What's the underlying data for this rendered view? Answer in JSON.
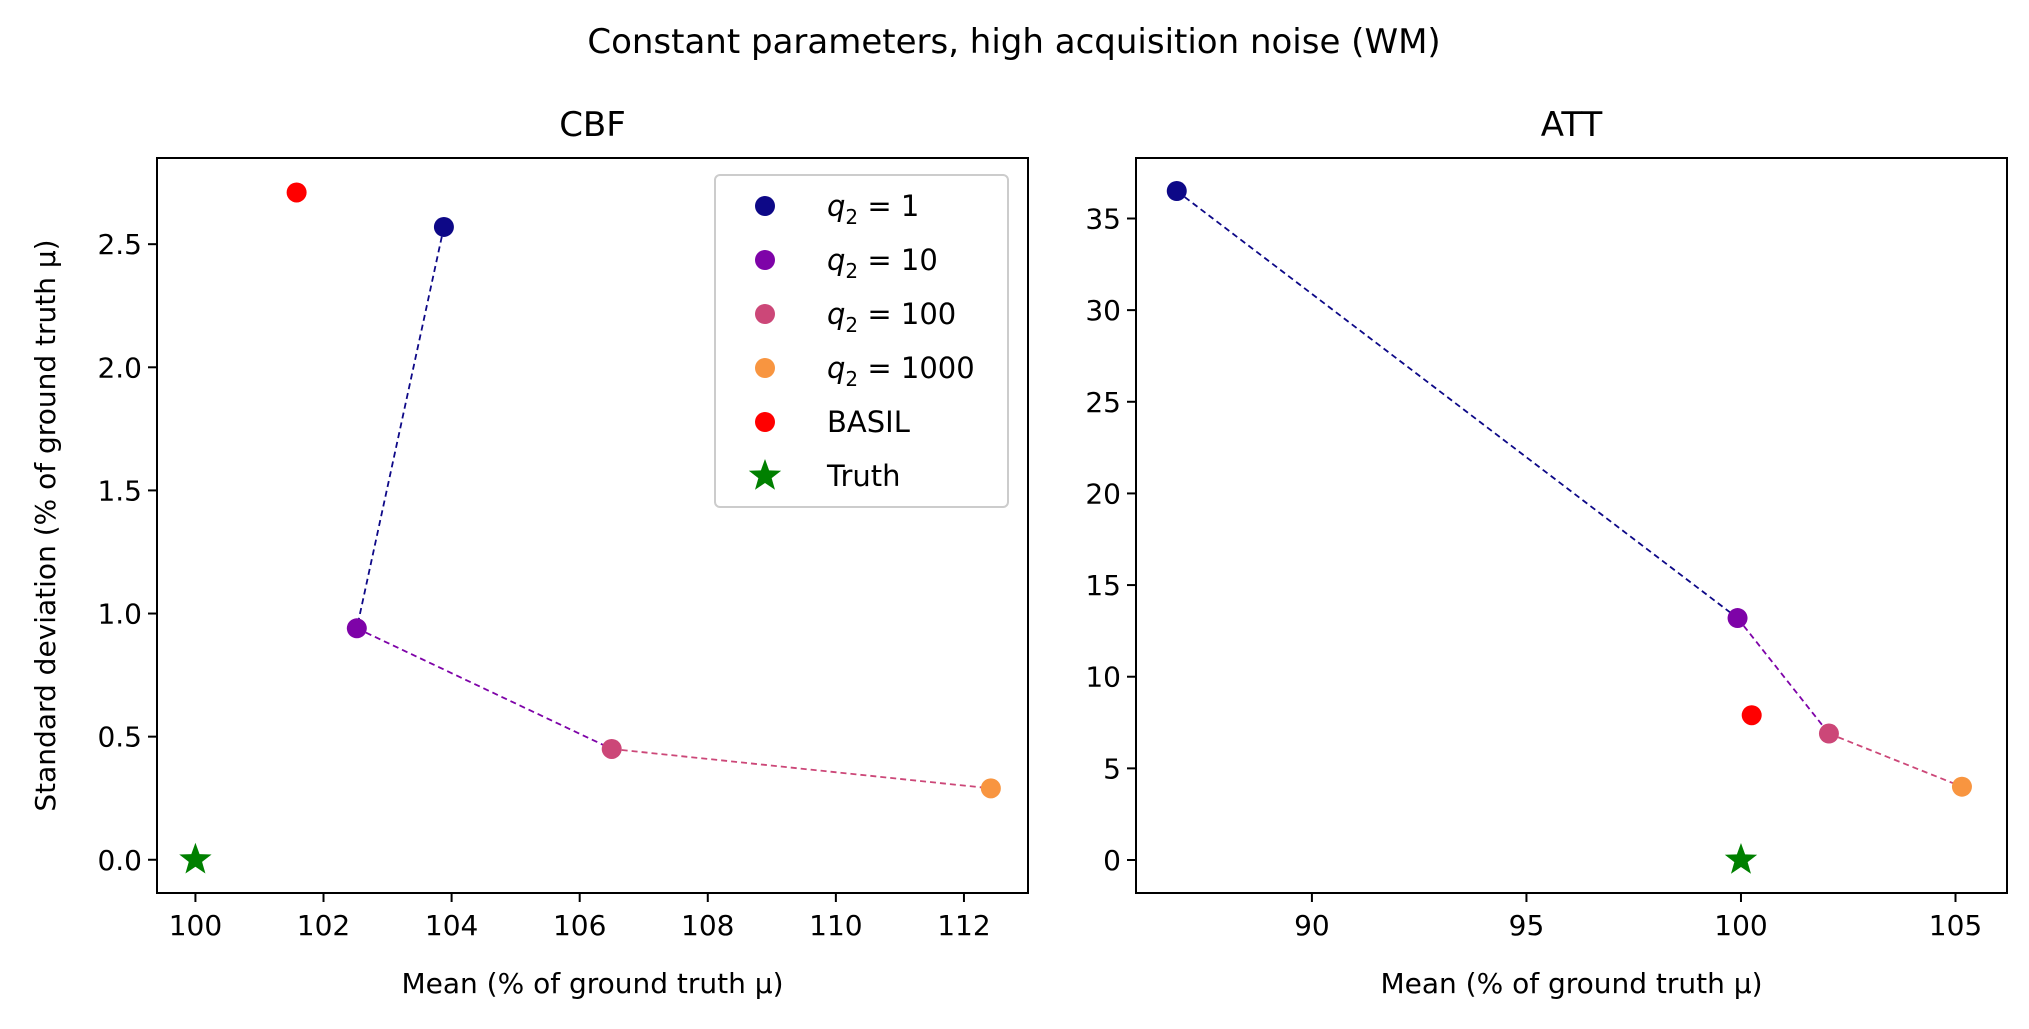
{
  "figure": {
    "suptitle": "Constant parameters, high acquisition noise (WM)"
  },
  "legend": {
    "entries": [
      {
        "key": "q1",
        "label": "q₂ = 1",
        "var": "q",
        "sub": "2",
        "rest": " = 1",
        "color": "#0d0887",
        "marker": "circle"
      },
      {
        "key": "q10",
        "label": "q₂ = 10",
        "var": "q",
        "sub": "2",
        "rest": " = 10",
        "color": "#7e03a8",
        "marker": "circle"
      },
      {
        "key": "q100",
        "label": "q₂ = 100",
        "var": "q",
        "sub": "2",
        "rest": " = 100",
        "color": "#cc4778",
        "marker": "circle"
      },
      {
        "key": "q1000",
        "label": "q₂ = 1000",
        "var": "q",
        "sub": "2",
        "rest": " = 1000",
        "color": "#f89540",
        "marker": "circle"
      },
      {
        "key": "basil",
        "label": "BASIL",
        "color": "#ff0000",
        "marker": "circle"
      },
      {
        "key": "truth",
        "label": "Truth",
        "color": "#008000",
        "marker": "star"
      }
    ]
  },
  "chart_data": [
    {
      "type": "scatter",
      "title": "CBF",
      "xlabel": "Mean (% of ground truth μ)",
      "ylabel": "Standard deviation (% of ground truth μ)",
      "xlim": [
        99.4,
        113.0
      ],
      "ylim": [
        -0.135,
        2.85
      ],
      "xticks": [
        100,
        102,
        104,
        106,
        108,
        110,
        112
      ],
      "yticks": [
        0.0,
        0.5,
        1.0,
        1.5,
        2.0,
        2.5
      ],
      "ytick_labels": [
        "0.0",
        "0.5",
        "1.0",
        "1.5",
        "2.0",
        "2.5"
      ],
      "legend_position": "upper right",
      "grid": false,
      "series": [
        {
          "name": "q₂ = 1",
          "color": "#0d0887",
          "x": 103.88,
          "y": 2.57
        },
        {
          "name": "q₂ = 10",
          "color": "#7e03a8",
          "x": 102.52,
          "y": 0.94
        },
        {
          "name": "q₂ = 100",
          "color": "#cc4778",
          "x": 106.5,
          "y": 0.45
        },
        {
          "name": "q₂ = 1000",
          "color": "#f89540",
          "x": 112.42,
          "y": 0.29
        },
        {
          "name": "BASIL",
          "color": "#ff0000",
          "x": 101.58,
          "y": 2.71
        },
        {
          "name": "Truth",
          "color": "#008000",
          "x": 100.0,
          "y": 0.0,
          "marker": "star"
        }
      ],
      "connections": [
        {
          "from": "q₂ = 1",
          "to": "q₂ = 10",
          "color": "#0d0887"
        },
        {
          "from": "q₂ = 10",
          "to": "q₂ = 100",
          "color": "#7e03a8"
        },
        {
          "from": "q₂ = 100",
          "to": "q₂ = 1000",
          "color": "#cc4778"
        }
      ]
    },
    {
      "type": "scatter",
      "title": "ATT",
      "xlabel": "Mean (% of ground truth μ)",
      "ylabel": "",
      "xlim": [
        85.9,
        106.2
      ],
      "ylim": [
        -1.8,
        38.3
      ],
      "xticks": [
        90,
        95,
        100,
        105
      ],
      "yticks": [
        0,
        5,
        10,
        15,
        20,
        25,
        30,
        35
      ],
      "ytick_labels": [
        "0",
        "5",
        "10",
        "15",
        "20",
        "25",
        "30",
        "35"
      ],
      "grid": false,
      "series": [
        {
          "name": "q₂ = 1",
          "color": "#0d0887",
          "x": 86.85,
          "y": 36.5
        },
        {
          "name": "q₂ = 10",
          "color": "#7e03a8",
          "x": 99.92,
          "y": 13.2
        },
        {
          "name": "q₂ = 100",
          "color": "#cc4778",
          "x": 102.05,
          "y": 6.9
        },
        {
          "name": "q₂ = 1000",
          "color": "#f89540",
          "x": 105.15,
          "y": 4.0
        },
        {
          "name": "BASIL",
          "color": "#ff0000",
          "x": 100.25,
          "y": 7.9
        },
        {
          "name": "Truth",
          "color": "#008000",
          "x": 100.0,
          "y": 0.0,
          "marker": "star"
        }
      ],
      "connections": [
        {
          "from": "q₂ = 1",
          "to": "q₂ = 10",
          "color": "#0d0887"
        },
        {
          "from": "q₂ = 10",
          "to": "q₂ = 100",
          "color": "#7e03a8"
        },
        {
          "from": "q₂ = 100",
          "to": "q₂ = 1000",
          "color": "#cc4778"
        }
      ]
    }
  ]
}
